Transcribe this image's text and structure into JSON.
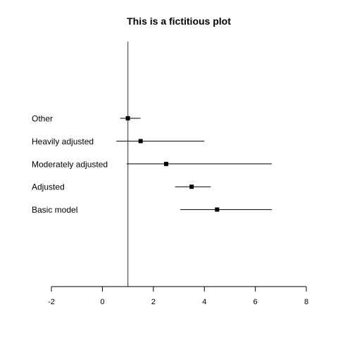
{
  "chart_data": {
    "type": "forest",
    "title": "This is a fictitious plot",
    "xlabel": "",
    "ylabel": "",
    "xlim": [
      -2,
      8
    ],
    "x_ticks": [
      -2,
      0,
      2,
      4,
      6,
      8
    ],
    "reference_line": 1,
    "grid": false,
    "categories": [
      "Other",
      "Heavily adjusted",
      "Moderately adjusted",
      "Adjusted",
      "Basic model"
    ],
    "estimates": [
      1.0,
      1.5,
      2.5,
      3.5,
      4.5
    ],
    "lower": [
      0.7,
      0.55,
      0.95,
      2.85,
      3.05
    ],
    "upper": [
      1.5,
      4.0,
      6.65,
      4.25,
      6.65
    ]
  },
  "colors": {
    "axis": "#000000",
    "reference_line": "#555555",
    "point": "#000000",
    "interval": "#000000"
  }
}
